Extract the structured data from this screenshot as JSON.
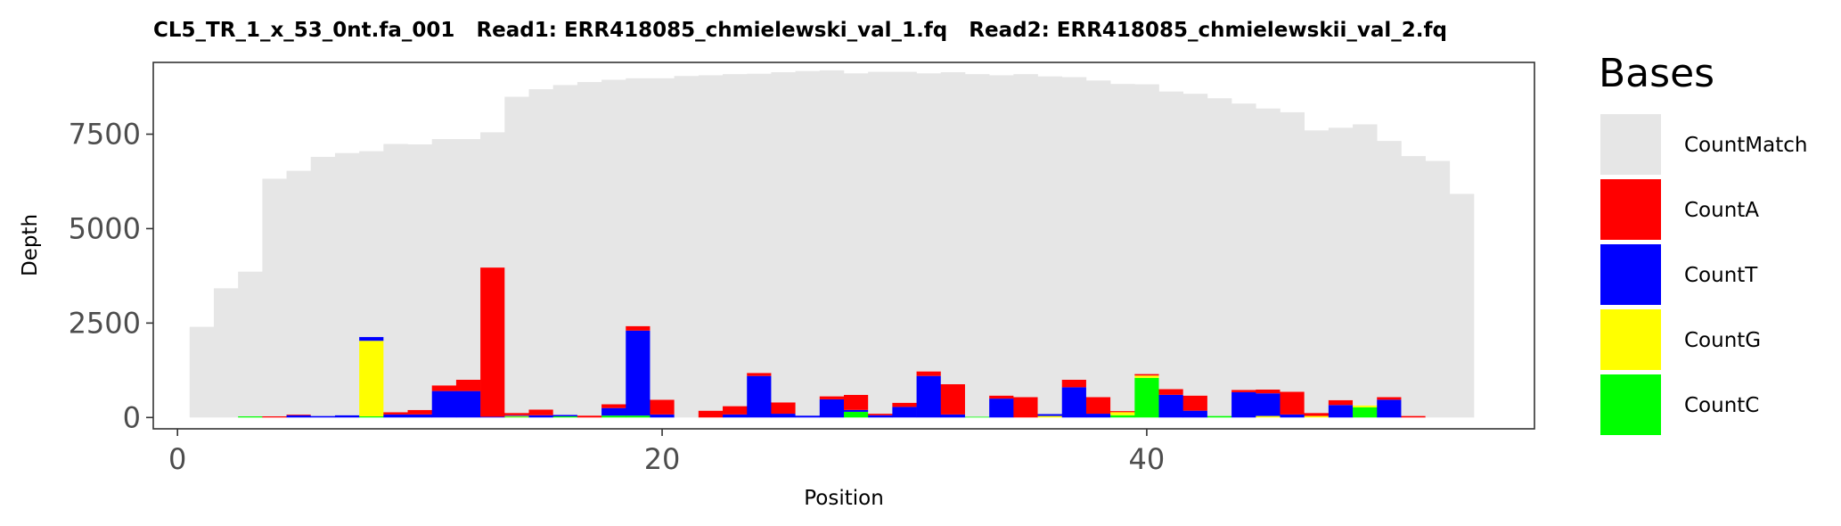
{
  "chart_data": {
    "type": "bar",
    "stacked": true,
    "title": "CL5_TR_1_x_53_0nt.fa_001   Read1: ERR418085_chmielewski_val_1.fq   Read2: ERR418085_chmielewskii_val_2.fq",
    "xlabel": "Position",
    "ylabel": "Depth",
    "xlim": [
      -1,
      56
    ],
    "ylim": [
      -300,
      9400
    ],
    "x_ticks": [
      0,
      20,
      40
    ],
    "y_ticks": [
      0,
      2500,
      5000,
      7500
    ],
    "grid": false,
    "legend_title": "Bases",
    "legend_position": "right",
    "colors": {
      "CountMatch": "#e6e6e6",
      "CountA": "#ff0000",
      "CountT": "#0000ff",
      "CountG": "#ffff00",
      "CountC": "#00ff00"
    },
    "positions": [
      1,
      2,
      3,
      4,
      5,
      6,
      7,
      8,
      9,
      10,
      11,
      12,
      13,
      14,
      15,
      16,
      17,
      18,
      19,
      20,
      21,
      22,
      23,
      24,
      25,
      26,
      27,
      28,
      29,
      30,
      31,
      32,
      33,
      34,
      35,
      36,
      37,
      38,
      39,
      40,
      41,
      42,
      43,
      44,
      45,
      46,
      47,
      48,
      49,
      50,
      51,
      52,
      53
    ],
    "series": [
      {
        "name": "CountC",
        "values": [
          0,
          0,
          30,
          0,
          0,
          0,
          0,
          30,
          0,
          0,
          0,
          0,
          0,
          20,
          0,
          30,
          0,
          50,
          50,
          0,
          0,
          0,
          0,
          0,
          0,
          0,
          0,
          150,
          0,
          0,
          0,
          0,
          20,
          0,
          0,
          0,
          0,
          0,
          60,
          1050,
          0,
          0,
          40,
          0,
          0,
          0,
          0,
          0,
          270,
          0,
          0,
          0,
          0
        ]
      },
      {
        "name": "CountG",
        "values": [
          0,
          0,
          0,
          0,
          0,
          0,
          0,
          2000,
          0,
          0,
          0,
          0,
          0,
          20,
          0,
          0,
          0,
          0,
          0,
          0,
          0,
          0,
          0,
          0,
          0,
          0,
          0,
          0,
          0,
          0,
          0,
          0,
          0,
          0,
          0,
          40,
          0,
          0,
          80,
          60,
          0,
          0,
          0,
          0,
          40,
          0,
          40,
          0,
          50,
          0,
          0,
          0,
          0
        ]
      },
      {
        "name": "CountT",
        "values": [
          0,
          0,
          0,
          0,
          60,
          40,
          60,
          100,
          80,
          80,
          700,
          700,
          20,
          20,
          60,
          40,
          0,
          200,
          2250,
          80,
          0,
          0,
          80,
          1100,
          100,
          50,
          480,
          50,
          60,
          280,
          1100,
          80,
          0,
          500,
          0,
          50,
          800,
          100,
          0,
          0,
          600,
          180,
          0,
          670,
          600,
          80,
          0,
          330,
          0,
          470,
          0,
          0,
          0
        ]
      },
      {
        "name": "CountA",
        "values": [
          0,
          0,
          0,
          30,
          20,
          0,
          0,
          0,
          60,
          120,
          150,
          300,
          3950,
          60,
          150,
          0,
          50,
          100,
          120,
          390,
          0,
          180,
          220,
          80,
          300,
          0,
          80,
          400,
          40,
          110,
          120,
          800,
          0,
          80,
          540,
          0,
          200,
          440,
          30,
          40,
          150,
          400,
          0,
          60,
          100,
          600,
          80,
          130,
          0,
          70,
          40,
          0,
          0
        ]
      },
      {
        "name": "CountMatch",
        "values": [
          2400,
          3420,
          3830,
          6290,
          6450,
          6860,
          6940,
          4920,
          7100,
          7030,
          6520,
          6370,
          3580,
          8370,
          8480,
          8730,
          8830,
          8590,
          6560,
          8510,
          9040,
          8880,
          8790,
          7920,
          8740,
          9120,
          8630,
          8510,
          9050,
          8760,
          7890,
          8260,
          9070,
          8480,
          8550,
          8940,
          8010,
          8380,
          8660,
          7670,
          7880,
          7990,
          8410,
          7580,
          7440,
          7400,
          7480,
          7210,
          7440,
          6780,
          6880,
          6790,
          5920
        ]
      }
    ],
    "legend_entries": [
      "CountMatch",
      "CountA",
      "CountT",
      "CountG",
      "CountC"
    ]
  }
}
